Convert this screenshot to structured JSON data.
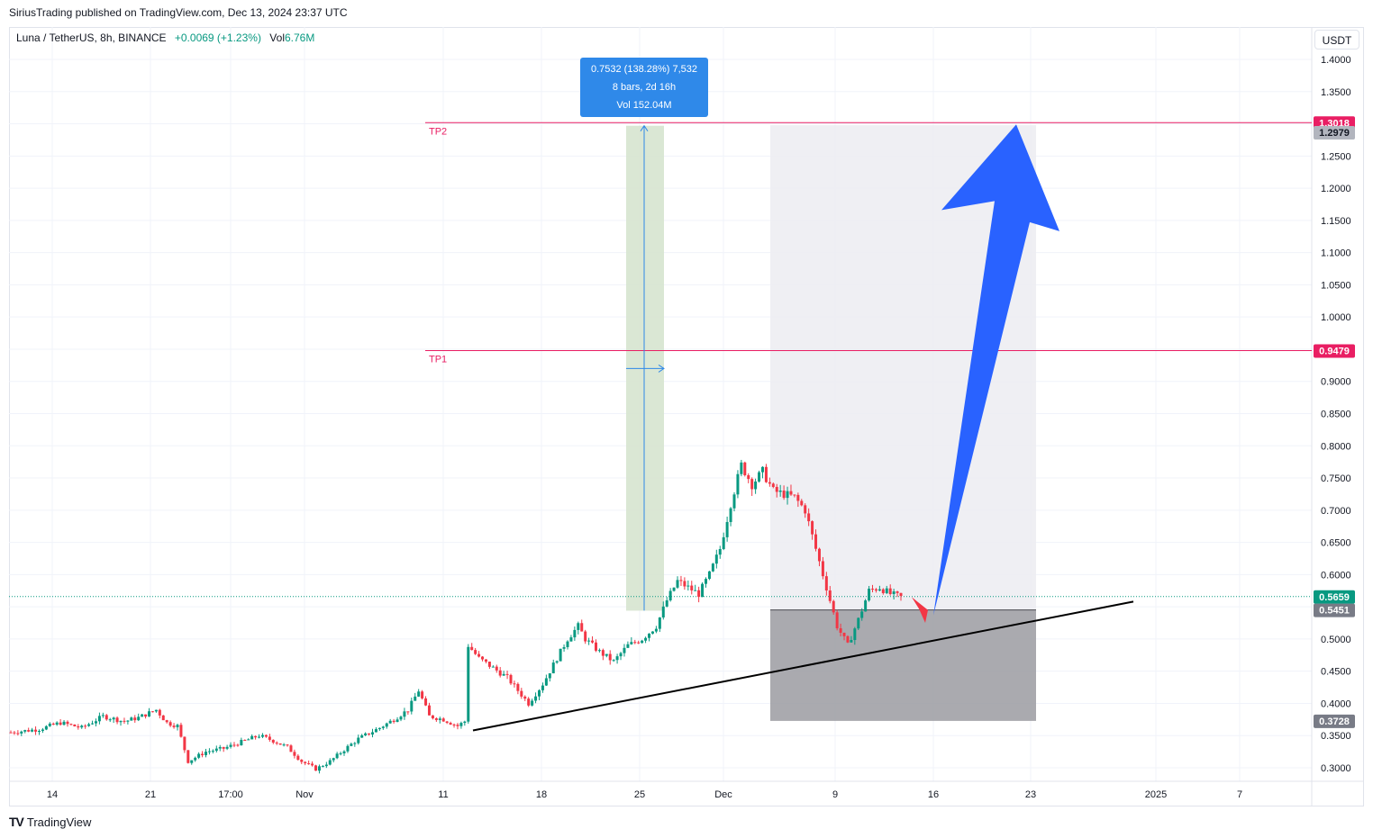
{
  "header": {
    "published_line": "SiriusTrading published on TradingView.com, Dec 13, 2024 23:37 UTC"
  },
  "legend": {
    "symbol": "Luna / TetherUS, 8h, BINANCE",
    "change": "+0.0069 (+1.23%)",
    "vol_label": "Vol",
    "vol_value": "6.76M"
  },
  "currency_button": "USDT",
  "measure_tooltip": {
    "line1": "0.7532 (138.28%) 7,532",
    "line2": "8 bars, 2d 16h",
    "line3": "Vol 152.04M"
  },
  "footer": {
    "logo_text": "TradingView"
  },
  "colors": {
    "up": "#089981",
    "down": "#f23645",
    "tp_line": "#e91e63",
    "arrow_blue": "#2962ff",
    "arrow_red": "#f23645",
    "measure_fill": "#d6e4cf",
    "measure_blue": "#2f89e9"
  },
  "chart_data": {
    "type": "candlestick",
    "symbol": "Luna / TetherUS",
    "interval": "8h",
    "exchange": "BINANCE",
    "currency": "USDT",
    "ylim": [
      0.28,
      1.42
    ],
    "y_ticks": [
      "1.4000",
      "1.3500",
      "1.3000",
      "1.2500",
      "1.2000",
      "1.1500",
      "1.1000",
      "1.0500",
      "1.0000",
      "0.9500",
      "0.9000",
      "0.8500",
      "0.8000",
      "0.7500",
      "0.7000",
      "0.6500",
      "0.6000",
      "0.5500",
      "0.5000",
      "0.4500",
      "0.4000",
      "0.3500",
      "0.3000"
    ],
    "y_ticks_visible": [
      "1.4000",
      "1.3500",
      "1.2500",
      "1.2000",
      "1.1500",
      "1.1000",
      "1.0500",
      "1.0000",
      "0.9000",
      "0.8500",
      "0.8000",
      "0.7500",
      "0.7000",
      "0.6500",
      "0.6000",
      "0.5000",
      "0.4500",
      "0.4000",
      "0.3500",
      "0.3000"
    ],
    "x_ticks": [
      "14",
      "21",
      "17:00",
      "Nov",
      "11",
      "18",
      "25",
      "Dec",
      "9",
      "16",
      "23",
      "2025",
      "7"
    ],
    "price_tags": [
      {
        "value": 1.3018,
        "label": "1.3018",
        "color": "#e91e63"
      },
      {
        "value": 1.2979,
        "label": "1.2979",
        "color": "#b2b5be"
      },
      {
        "value": 0.9479,
        "label": "0.9479",
        "color": "#e91e63"
      },
      {
        "value": 0.5659,
        "label": "0.5659",
        "color": "#089981"
      },
      {
        "value": 0.5451,
        "label": "0.5451",
        "color": "#787b86"
      },
      {
        "value": 0.3728,
        "label": "0.3728",
        "color": "#787b86"
      }
    ],
    "last_price": 0.5659,
    "annotations": {
      "tp2": {
        "label": "TP2",
        "value": 1.3018
      },
      "tp1": {
        "label": "TP1",
        "value": 0.9479
      },
      "long_position": {
        "entry": 0.5451,
        "target": 1.2979,
        "stop": 0.3728
      },
      "trendline": {
        "from": 0.358,
        "to": 0.558
      }
    },
    "price_path": [
      [
        0,
        0.355
      ],
      [
        8,
        0.36
      ],
      [
        14,
        0.37
      ],
      [
        20,
        0.362
      ],
      [
        26,
        0.38
      ],
      [
        32,
        0.372
      ],
      [
        36,
        0.378
      ],
      [
        41,
        0.39
      ],
      [
        44,
        0.37
      ],
      [
        47,
        0.365
      ],
      [
        50,
        0.31
      ],
      [
        55,
        0.325
      ],
      [
        60,
        0.33
      ],
      [
        64,
        0.338
      ],
      [
        70,
        0.35
      ],
      [
        74,
        0.342
      ],
      [
        78,
        0.332
      ],
      [
        82,
        0.31
      ],
      [
        86,
        0.298
      ],
      [
        90,
        0.31
      ],
      [
        94,
        0.328
      ],
      [
        98,
        0.345
      ],
      [
        104,
        0.362
      ],
      [
        108,
        0.375
      ],
      [
        112,
        0.39
      ],
      [
        115,
        0.42
      ],
      [
        118,
        0.38
      ],
      [
        122,
        0.375
      ],
      [
        126,
        0.365
      ],
      [
        128,
        0.372
      ],
      [
        129,
        0.49
      ],
      [
        132,
        0.47
      ],
      [
        136,
        0.455
      ],
      [
        140,
        0.44
      ],
      [
        143,
        0.42
      ],
      [
        146,
        0.4
      ],
      [
        150,
        0.43
      ],
      [
        154,
        0.47
      ],
      [
        157,
        0.5
      ],
      [
        160,
        0.52
      ],
      [
        162,
        0.5
      ],
      [
        166,
        0.48
      ],
      [
        170,
        0.465
      ],
      [
        174,
        0.49
      ],
      [
        178,
        0.5
      ],
      [
        182,
        0.52
      ],
      [
        185,
        0.56
      ],
      [
        188,
        0.59
      ],
      [
        191,
        0.58
      ],
      [
        194,
        0.57
      ],
      [
        197,
        0.6
      ],
      [
        200,
        0.64
      ],
      [
        203,
        0.71
      ],
      [
        206,
        0.77
      ],
      [
        209,
        0.74
      ],
      [
        212,
        0.76
      ],
      [
        215,
        0.73
      ],
      [
        218,
        0.725
      ],
      [
        221,
        0.72
      ],
      [
        224,
        0.7
      ],
      [
        227,
        0.64
      ],
      [
        230,
        0.58
      ],
      [
        233,
        0.52
      ],
      [
        236,
        0.49
      ],
      [
        239,
        0.53
      ],
      [
        242,
        0.575
      ],
      [
        245,
        0.58
      ],
      [
        248,
        0.57
      ],
      [
        251,
        0.565
      ]
    ]
  }
}
